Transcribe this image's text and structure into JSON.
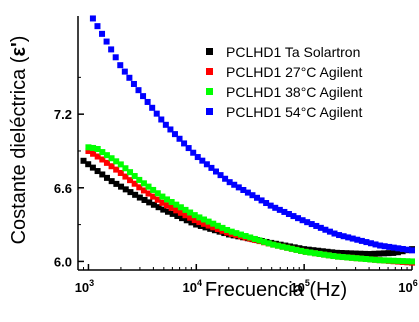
{
  "chart_data": {
    "type": "scatter",
    "title": "",
    "xlabel": "Frecuencia (Hz)",
    "ylabel_main": "Costante dieléctrica (",
    "ylabel_symbol": "ε'",
    "ylabel_close": ")",
    "x_scale": "log",
    "xlim": [
      800,
      1000000
    ],
    "ylim": [
      5.93,
      8.0
    ],
    "x_ticks": [
      {
        "value": 1000,
        "base": "10",
        "exp": "3"
      },
      {
        "value": 10000,
        "base": "10",
        "exp": "4"
      },
      {
        "value": 100000,
        "base": "10",
        "exp": "5"
      },
      {
        "value": 1000000,
        "base": "10",
        "exp": "6"
      }
    ],
    "y_ticks": [
      {
        "value": 6.0,
        "label": "6.0"
      },
      {
        "value": 6.6,
        "label": "6.6"
      },
      {
        "value": 7.2,
        "label": "7.2"
      }
    ],
    "grid": false,
    "legend_position": "top-right",
    "series": [
      {
        "name": "PCLHD1 Ta Solartron",
        "color": "#000000",
        "points": [
          [
            900,
            6.82
          ],
          [
            1200,
            6.74
          ],
          [
            1600,
            6.66
          ],
          [
            2000,
            6.61
          ],
          [
            3000,
            6.52
          ],
          [
            5000,
            6.42
          ],
          [
            10000,
            6.3
          ],
          [
            20000,
            6.22
          ],
          [
            50000,
            6.15
          ],
          [
            100000,
            6.1
          ],
          [
            200000,
            6.07
          ],
          [
            400000,
            6.06
          ],
          [
            700000,
            6.07
          ],
          [
            1000000,
            6.1
          ]
        ]
      },
      {
        "name": "PCLHD1 27°C Agilent",
        "color": "#ff0000",
        "points": [
          [
            1000,
            6.9
          ],
          [
            1300,
            6.84
          ],
          [
            2000,
            6.72
          ],
          [
            3000,
            6.6
          ],
          [
            5000,
            6.47
          ],
          [
            10000,
            6.33
          ],
          [
            20000,
            6.23
          ],
          [
            50000,
            6.14
          ],
          [
            100000,
            6.08
          ],
          [
            200000,
            6.04
          ],
          [
            500000,
            6.01
          ],
          [
            1000000,
            5.99
          ]
        ]
      },
      {
        "name": "PCLHD1 38°C Agilent",
        "color": "#00ff00",
        "points": [
          [
            1000,
            6.93
          ],
          [
            1200,
            6.92
          ],
          [
            2000,
            6.79
          ],
          [
            3000,
            6.66
          ],
          [
            5000,
            6.52
          ],
          [
            10000,
            6.37
          ],
          [
            20000,
            6.25
          ],
          [
            50000,
            6.14
          ],
          [
            100000,
            6.08
          ],
          [
            200000,
            6.04
          ],
          [
            500000,
            6.01
          ],
          [
            1000000,
            6.0
          ]
        ]
      },
      {
        "name": "PCLHD1 54°C Agilent",
        "color": "#0000ff",
        "points": [
          [
            1100,
            7.98
          ],
          [
            1500,
            7.78
          ],
          [
            2000,
            7.59
          ],
          [
            3000,
            7.38
          ],
          [
            5000,
            7.13
          ],
          [
            10000,
            6.86
          ],
          [
            20000,
            6.65
          ],
          [
            50000,
            6.45
          ],
          [
            100000,
            6.33
          ],
          [
            200000,
            6.22
          ],
          [
            500000,
            6.13
          ],
          [
            1000000,
            6.09
          ]
        ]
      }
    ]
  }
}
